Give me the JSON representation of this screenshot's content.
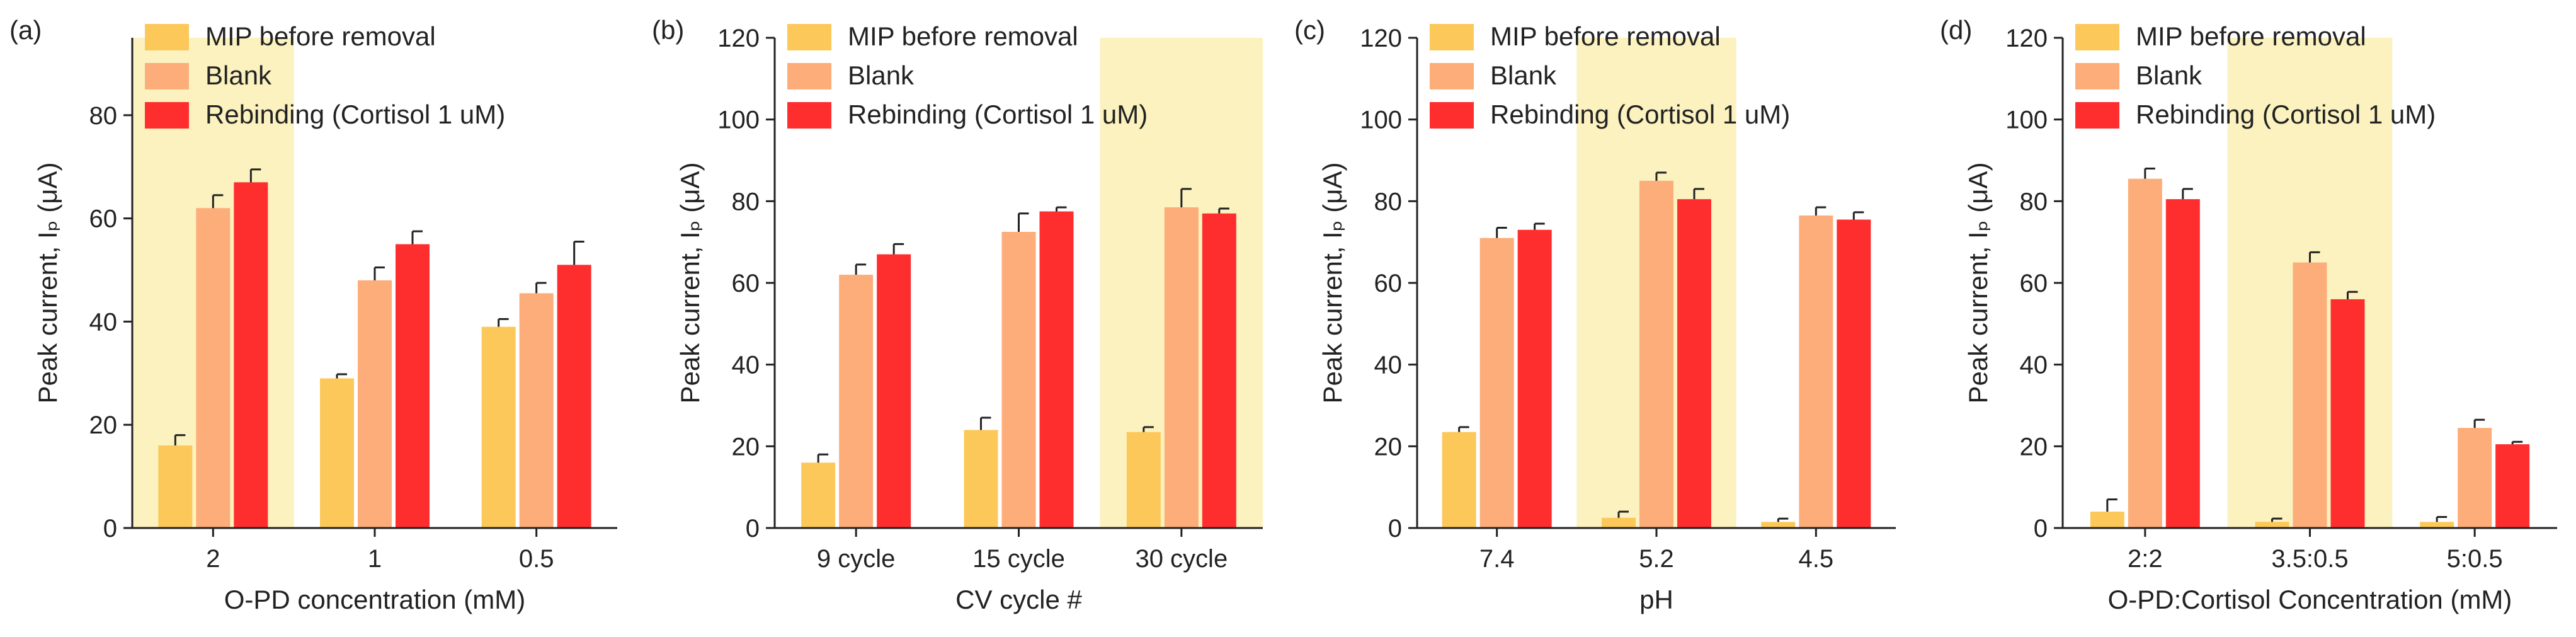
{
  "legend": [
    "MIP before removal",
    "Blank",
    "Rebinding (Cortisol 1 uM)"
  ],
  "colors": {
    "mip": "#FCC85A",
    "blank": "#FDAD79",
    "rebinding": "#FF2E2E",
    "highlight": "#FBF2BF",
    "axis": "#222222"
  },
  "chart_data": [
    {
      "type": "bar",
      "panel_label": "(a)",
      "title": "",
      "xlabel": "O-PD concentration (mM)",
      "ylabel": "Peak current, Iₚ (μA)",
      "ylim": [
        0,
        95
      ],
      "yticks": [
        0,
        20,
        40,
        60,
        80
      ],
      "categories": [
        "2",
        "1",
        "0.5"
      ],
      "highlight_category": 0,
      "legend_position": "top-right",
      "series": [
        {
          "name": "MIP before removal",
          "values": [
            16,
            29,
            39
          ],
          "errors": [
            2,
            0.8,
            1.5
          ]
        },
        {
          "name": "Blank",
          "values": [
            62,
            48,
            45.5
          ],
          "errors": [
            2.5,
            2.5,
            2
          ]
        },
        {
          "name": "Rebinding (Cortisol 1 uM)",
          "values": [
            67,
            55,
            51
          ],
          "errors": [
            2.5,
            2.5,
            4.5
          ]
        }
      ]
    },
    {
      "type": "bar",
      "panel_label": "(b)",
      "title": "",
      "xlabel": "CV cycle #",
      "ylabel": "Peak current, Iₚ (μA)",
      "ylim": [
        0,
        120
      ],
      "yticks": [
        0,
        20,
        40,
        60,
        80,
        100,
        120
      ],
      "categories": [
        "9 cycle",
        "15 cycle",
        "30 cycle"
      ],
      "highlight_category": 2,
      "legend_position": "top-right",
      "series": [
        {
          "name": "MIP before removal",
          "values": [
            16,
            24,
            23.5
          ],
          "errors": [
            2,
            3,
            1.2
          ]
        },
        {
          "name": "Blank",
          "values": [
            62,
            72.5,
            78.5
          ],
          "errors": [
            2.5,
            4.5,
            4.5
          ]
        },
        {
          "name": "Rebinding (Cortisol 1 uM)",
          "values": [
            67,
            77.5,
            77
          ],
          "errors": [
            2.5,
            1,
            1.2
          ]
        }
      ]
    },
    {
      "type": "bar",
      "panel_label": "(c)",
      "title": "",
      "xlabel": "pH",
      "ylabel": "Peak current, Iₚ (μA)",
      "ylim": [
        0,
        120
      ],
      "yticks": [
        0,
        20,
        40,
        60,
        80,
        100,
        120
      ],
      "categories": [
        "7.4",
        "5.2",
        "4.5"
      ],
      "highlight_category": 1,
      "legend_position": "top-right",
      "series": [
        {
          "name": "MIP before removal",
          "values": [
            23.5,
            2.5,
            1.5
          ],
          "errors": [
            1.2,
            1.5,
            0.8
          ]
        },
        {
          "name": "Blank",
          "values": [
            71,
            85,
            76.5
          ],
          "errors": [
            2.5,
            2,
            2
          ]
        },
        {
          "name": "Rebinding (Cortisol 1 uM)",
          "values": [
            73,
            80.5,
            75.5
          ],
          "errors": [
            1.5,
            2.5,
            1.8
          ]
        }
      ]
    },
    {
      "type": "bar",
      "panel_label": "(d)",
      "title": "",
      "xlabel": "O-PD:Cortisol Concentration (mM)",
      "ylabel": "Peak current, Iₚ (μA)",
      "ylim": [
        0,
        120
      ],
      "yticks": [
        0,
        20,
        40,
        60,
        80,
        100,
        120
      ],
      "categories": [
        "2:2",
        "3.5:0.5",
        "5:0.5"
      ],
      "highlight_category": 1,
      "legend_position": "top-right",
      "series": [
        {
          "name": "MIP before removal",
          "values": [
            4,
            1.5,
            1.5
          ],
          "errors": [
            3,
            0.8,
            1.2
          ]
        },
        {
          "name": "Blank",
          "values": [
            85.5,
            65,
            24.5
          ],
          "errors": [
            2.5,
            2.5,
            2
          ]
        },
        {
          "name": "Rebinding (Cortisol 1 uM)",
          "values": [
            80.5,
            56,
            20.5
          ],
          "errors": [
            2.5,
            1.8,
            0.6
          ]
        }
      ]
    }
  ]
}
